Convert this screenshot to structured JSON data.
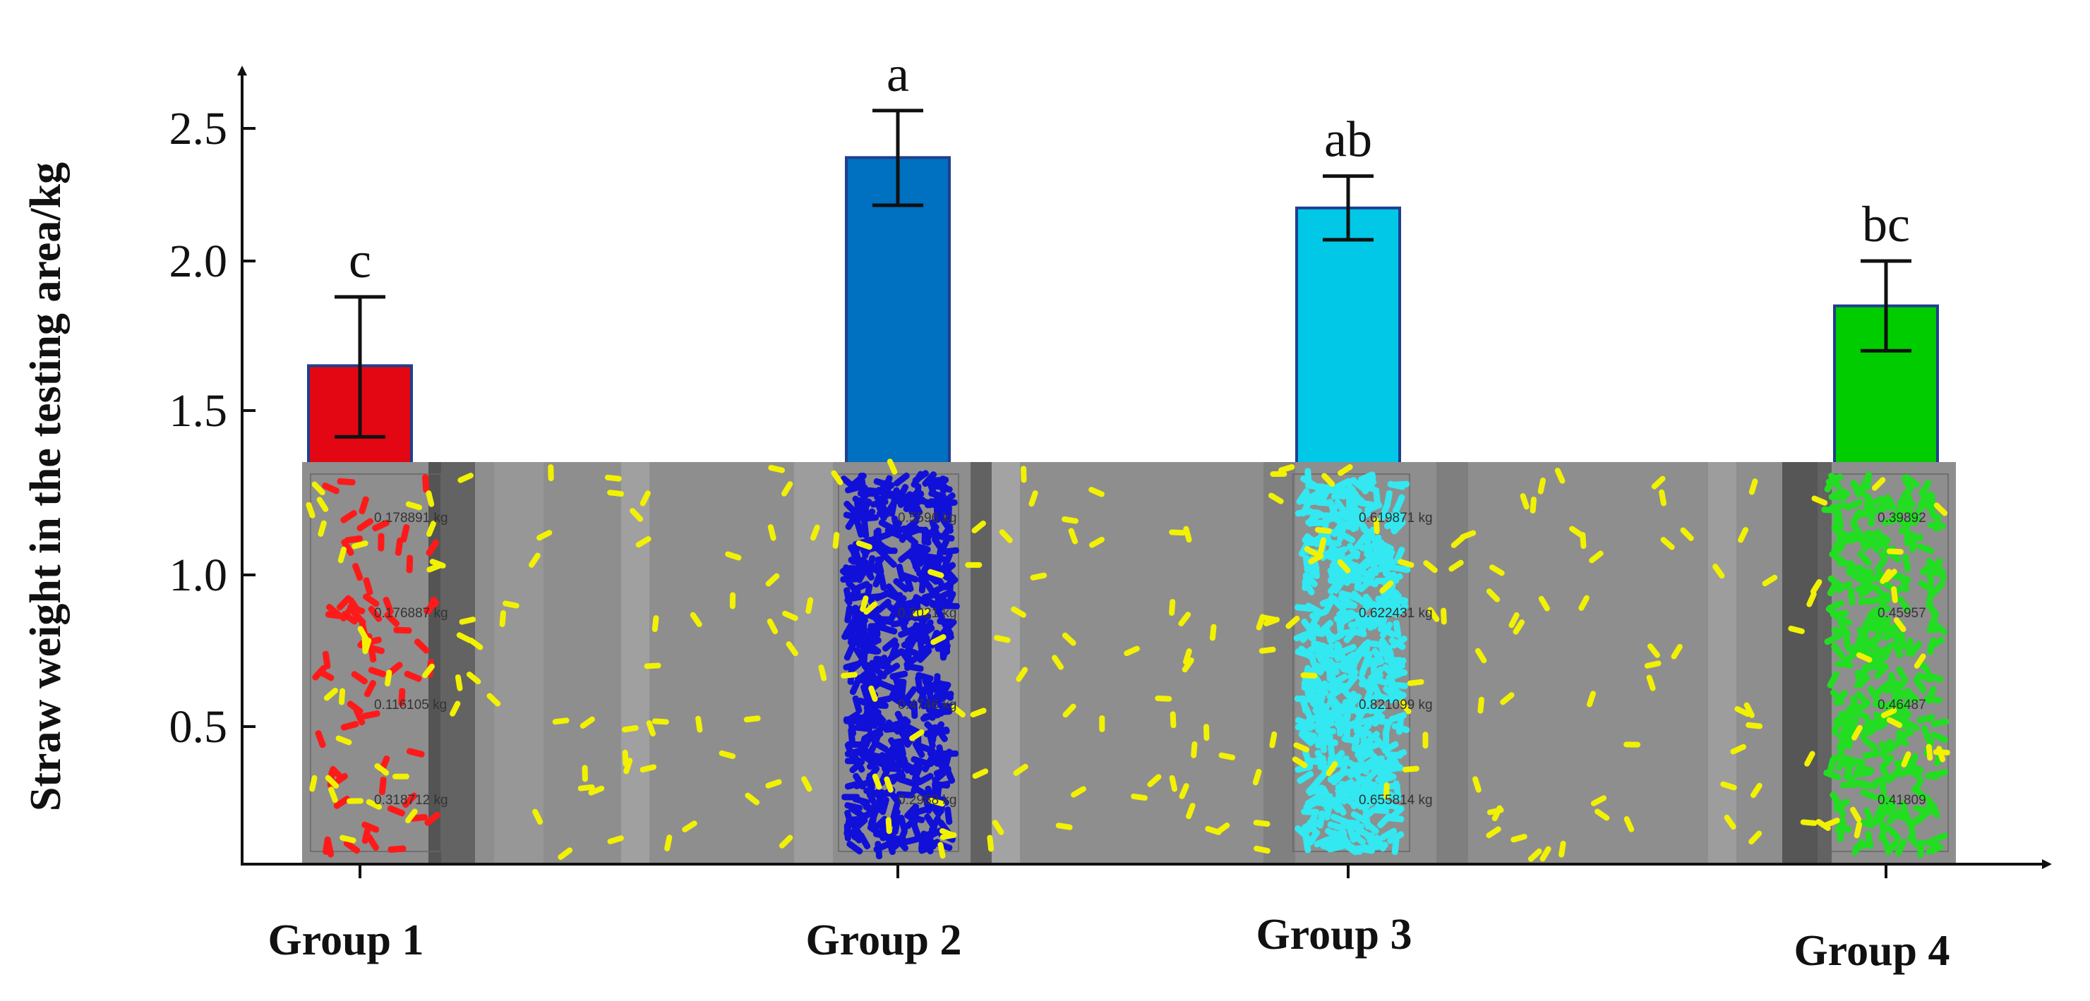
{
  "chart_data": {
    "type": "bar",
    "ylabel": "Straw weight in the testing area/kg",
    "xlabel": "",
    "ylim": [
      0.0,
      2.7
    ],
    "yticks": [
      "0.5",
      "1.0",
      "1.5",
      "2.0",
      "2.5"
    ],
    "ytick_values": [
      0.5,
      1.0,
      1.5,
      2.0,
      2.5
    ],
    "categories": [
      "Group 1",
      "Group 2",
      "Group 3",
      "Group 4"
    ],
    "values": [
      1.65,
      2.39,
      2.2,
      1.85
    ],
    "error": [
      0.23,
      0.18,
      0.12,
      0.15
    ],
    "significance": [
      "c",
      "a",
      "ab",
      "bc"
    ],
    "colors": [
      "#e30613",
      "#0070c0",
      "#00c8e6",
      "#00cc00"
    ],
    "bar_edge_color": "#1f3f8f",
    "grid": false,
    "legend": "none",
    "overlay_image": {
      "description_labels": {
        "group1": [
          "0.178891 kg",
          "0.176887 kg",
          "0.116105 kg",
          "0.318712 kg"
        ],
        "group2": [
          "0.5596 kg",
          "0.2021 kg",
          "0.4746 kg",
          "0.2988 kg"
        ],
        "group3": [
          "0.619871 kg",
          "0.622431 kg",
          "0.821099 kg",
          "0.655814 kg"
        ],
        "group4": [
          "0.39892",
          "0.45957",
          "0.46487",
          "0.41809"
        ]
      },
      "particle_colors": [
        "#ff1a1a",
        "#1010d8",
        "#33e8f0",
        "#22dd22",
        "#f2f200"
      ]
    }
  }
}
